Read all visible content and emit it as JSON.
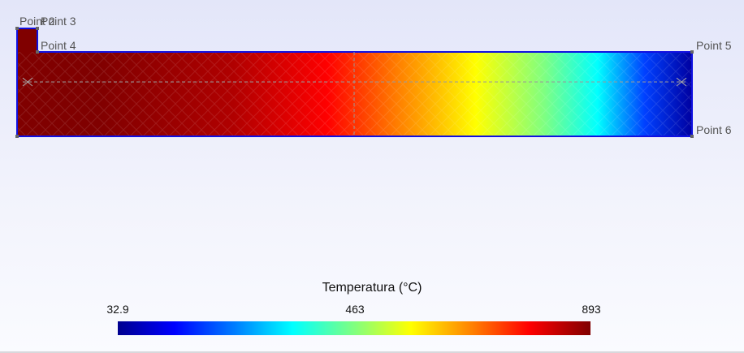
{
  "points": [
    {
      "id": "p2",
      "label": "Point 2"
    },
    {
      "id": "p3",
      "label": "Point 3"
    },
    {
      "id": "p4",
      "label": "Point 4"
    },
    {
      "id": "p5",
      "label": "Point 5"
    },
    {
      "id": "p6",
      "label": "Point 6"
    }
  ],
  "legend": {
    "title": "Temperatura (°C)",
    "min": "32.9",
    "mid": "463",
    "max": "893",
    "colormap": [
      "#00008f",
      "#0000ff",
      "#0080ff",
      "#00ffff",
      "#80ff80",
      "#ffff00",
      "#ff8000",
      "#ff0000",
      "#800000"
    ]
  },
  "colors": {
    "outline": "#1010e0",
    "hot": "#800000",
    "cold": "#00008f"
  }
}
